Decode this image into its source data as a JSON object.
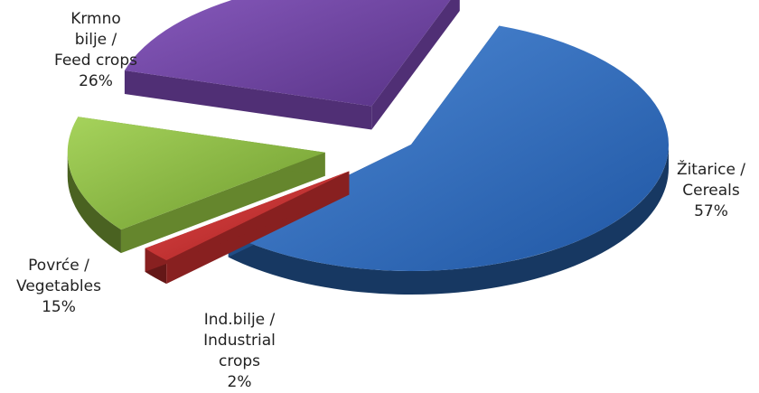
{
  "chart_data": {
    "type": "pie",
    "title": "",
    "slices": [
      {
        "label": "Žitarice / Cereals",
        "value": 57,
        "color": "#2a66b3",
        "label_lines": [
          "Žitarice /",
          "Cereals",
          "57%"
        ]
      },
      {
        "label": "Ind.bilje / Industrial crops",
        "value": 2,
        "color": "#b52a2a",
        "label_lines": [
          "Ind.bilje /",
          "Industrial",
          "crops",
          "2%"
        ]
      },
      {
        "label": "Povrće / Vegetables",
        "value": 15,
        "color": "#86b33c",
        "label_lines": [
          "Povrće /",
          "Vegetables",
          "15%"
        ]
      },
      {
        "label": "Krmno bilje / Feed crops",
        "value": 26,
        "color": "#6a3f9c",
        "label_lines": [
          "Krmno",
          "bilje /",
          "Feed crops",
          "26%"
        ]
      }
    ],
    "legend": "none",
    "style": "3d-exploded"
  }
}
